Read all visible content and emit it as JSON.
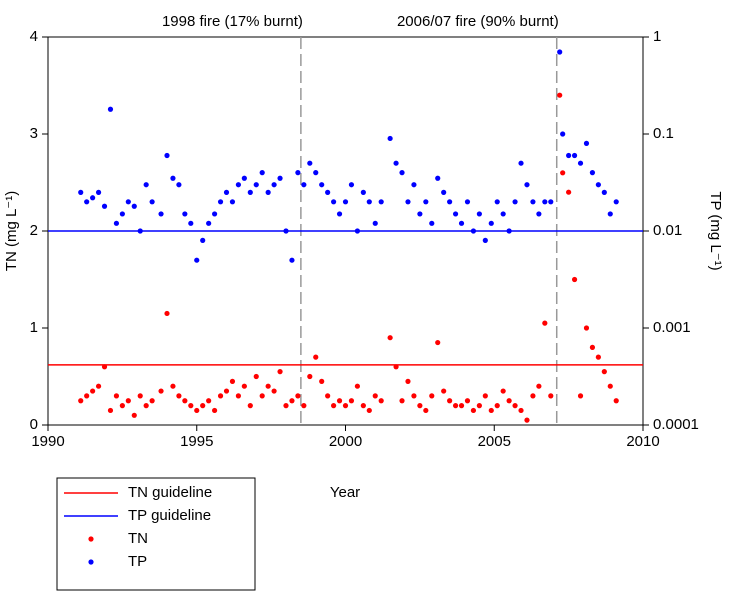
{
  "chart_data": {
    "type": "scatter",
    "x_label": "Year",
    "y_label": "TN (mg L⁻¹)",
    "y2_label": "TP (mg L⁻¹)",
    "xlim": [
      1990,
      2010
    ],
    "xticks": [
      1990,
      1995,
      2000,
      2005,
      2010
    ],
    "ylim": [
      0,
      4
    ],
    "yticks": [
      0,
      1,
      2,
      3,
      4
    ],
    "y2lim": [
      0.0001,
      1
    ],
    "y2ticks": [
      0.0001,
      0.001,
      0.01,
      0.1,
      1
    ],
    "y2log": true,
    "events": [
      {
        "x": 1998.5,
        "label": "1998 fire (17% burnt)"
      },
      {
        "x": 2007.1,
        "label": "2006/07 fire (90% burnt)"
      }
    ],
    "guidelines": [
      {
        "name": "TN guideline",
        "color": "#ff0000",
        "value": 0.62
      },
      {
        "name": "TP guideline",
        "color": "#0000ff",
        "value": 0.01,
        "axis": "y2"
      }
    ],
    "series": [
      {
        "name": "TN",
        "color": "#ff0000",
        "x": [
          1991.1,
          1991.3,
          1991.5,
          1991.7,
          1991.9,
          1992.1,
          1992.3,
          1992.5,
          1992.7,
          1992.9,
          1993.1,
          1993.3,
          1993.5,
          1993.8,
          1994.0,
          1994.2,
          1994.4,
          1994.6,
          1994.8,
          1995.0,
          1995.2,
          1995.4,
          1995.6,
          1995.8,
          1996.0,
          1996.2,
          1996.4,
          1996.6,
          1996.8,
          1997.0,
          1997.2,
          1997.4,
          1997.6,
          1997.8,
          1998.0,
          1998.2,
          1998.4,
          1998.6,
          1998.8,
          1999.0,
          1999.2,
          1999.4,
          1999.6,
          1999.8,
          2000.0,
          2000.2,
          2000.4,
          2000.6,
          2000.8,
          2001.0,
          2001.2,
          2001.5,
          2001.7,
          2001.9,
          2002.1,
          2002.3,
          2002.5,
          2002.7,
          2002.9,
          2003.1,
          2003.3,
          2003.5,
          2003.7,
          2003.9,
          2004.1,
          2004.3,
          2004.5,
          2004.7,
          2004.9,
          2005.1,
          2005.3,
          2005.5,
          2005.7,
          2005.9,
          2006.1,
          2006.3,
          2006.5,
          2006.7,
          2006.9,
          2007.2,
          2007.3,
          2007.5,
          2007.7,
          2007.9,
          2008.1,
          2008.3,
          2008.5,
          2008.7,
          2008.9,
          2009.1
        ],
        "values": [
          0.25,
          0.3,
          0.35,
          0.4,
          0.6,
          0.15,
          0.3,
          0.2,
          0.25,
          0.1,
          0.3,
          0.2,
          0.25,
          0.35,
          1.15,
          0.4,
          0.3,
          0.25,
          0.2,
          0.15,
          0.2,
          0.25,
          0.15,
          0.3,
          0.35,
          0.45,
          0.3,
          0.4,
          0.2,
          0.5,
          0.3,
          0.4,
          0.35,
          0.55,
          0.2,
          0.25,
          0.3,
          0.2,
          0.5,
          0.7,
          0.45,
          0.3,
          0.2,
          0.25,
          0.2,
          0.25,
          0.4,
          0.2,
          0.15,
          0.3,
          0.25,
          0.9,
          0.6,
          0.25,
          0.45,
          0.3,
          0.2,
          0.15,
          0.3,
          0.85,
          0.35,
          0.25,
          0.2,
          0.2,
          0.25,
          0.15,
          0.2,
          0.3,
          0.15,
          0.2,
          0.35,
          0.25,
          0.2,
          0.15,
          0.05,
          0.3,
          0.4,
          1.05,
          0.3,
          3.4,
          2.6,
          2.4,
          1.5,
          0.3,
          1.0,
          0.8,
          0.7,
          0.55,
          0.4,
          0.25
        ]
      },
      {
        "name": "TP",
        "color": "#0000ff",
        "axis": "y2",
        "x": [
          1991.1,
          1991.3,
          1991.5,
          1991.7,
          1991.9,
          1992.1,
          1992.3,
          1992.5,
          1992.7,
          1992.9,
          1993.1,
          1993.3,
          1993.5,
          1993.8,
          1994.0,
          1994.2,
          1994.4,
          1994.6,
          1994.8,
          1995.0,
          1995.2,
          1995.4,
          1995.6,
          1995.8,
          1996.0,
          1996.2,
          1996.4,
          1996.6,
          1996.8,
          1997.0,
          1997.2,
          1997.4,
          1997.6,
          1997.8,
          1998.0,
          1998.2,
          1998.4,
          1998.6,
          1998.8,
          1999.0,
          1999.2,
          1999.4,
          1999.6,
          1999.8,
          2000.0,
          2000.2,
          2000.4,
          2000.6,
          2000.8,
          2001.0,
          2001.2,
          2001.5,
          2001.7,
          2001.9,
          2002.1,
          2002.3,
          2002.5,
          2002.7,
          2002.9,
          2003.1,
          2003.3,
          2003.5,
          2003.7,
          2003.9,
          2004.1,
          2004.3,
          2004.5,
          2004.7,
          2004.9,
          2005.1,
          2005.3,
          2005.5,
          2005.7,
          2005.9,
          2006.1,
          2006.3,
          2006.5,
          2006.7,
          2006.9,
          2007.2,
          2007.3,
          2007.5,
          2007.7,
          2007.9,
          2008.1,
          2008.3,
          2008.5,
          2008.7,
          2008.9,
          2009.1
        ],
        "values": [
          0.025,
          0.02,
          0.022,
          0.025,
          0.018,
          0.18,
          0.012,
          0.015,
          0.02,
          0.018,
          0.01,
          0.03,
          0.02,
          0.015,
          0.06,
          0.035,
          0.03,
          0.015,
          0.012,
          0.005,
          0.008,
          0.012,
          0.015,
          0.02,
          0.025,
          0.02,
          0.03,
          0.035,
          0.025,
          0.03,
          0.04,
          0.025,
          0.03,
          0.035,
          0.01,
          0.005,
          0.04,
          0.03,
          0.05,
          0.04,
          0.03,
          0.025,
          0.02,
          0.015,
          0.02,
          0.03,
          0.01,
          0.025,
          0.02,
          0.012,
          0.02,
          0.09,
          0.05,
          0.04,
          0.02,
          0.03,
          0.015,
          0.02,
          0.012,
          0.035,
          0.025,
          0.02,
          0.015,
          0.012,
          0.02,
          0.01,
          0.015,
          0.008,
          0.012,
          0.02,
          0.015,
          0.01,
          0.02,
          0.05,
          0.03,
          0.02,
          0.015,
          0.02,
          0.02,
          0.7,
          0.1,
          0.06,
          0.06,
          0.05,
          0.08,
          0.04,
          0.03,
          0.025,
          0.015,
          0.02
        ]
      }
    ]
  }
}
